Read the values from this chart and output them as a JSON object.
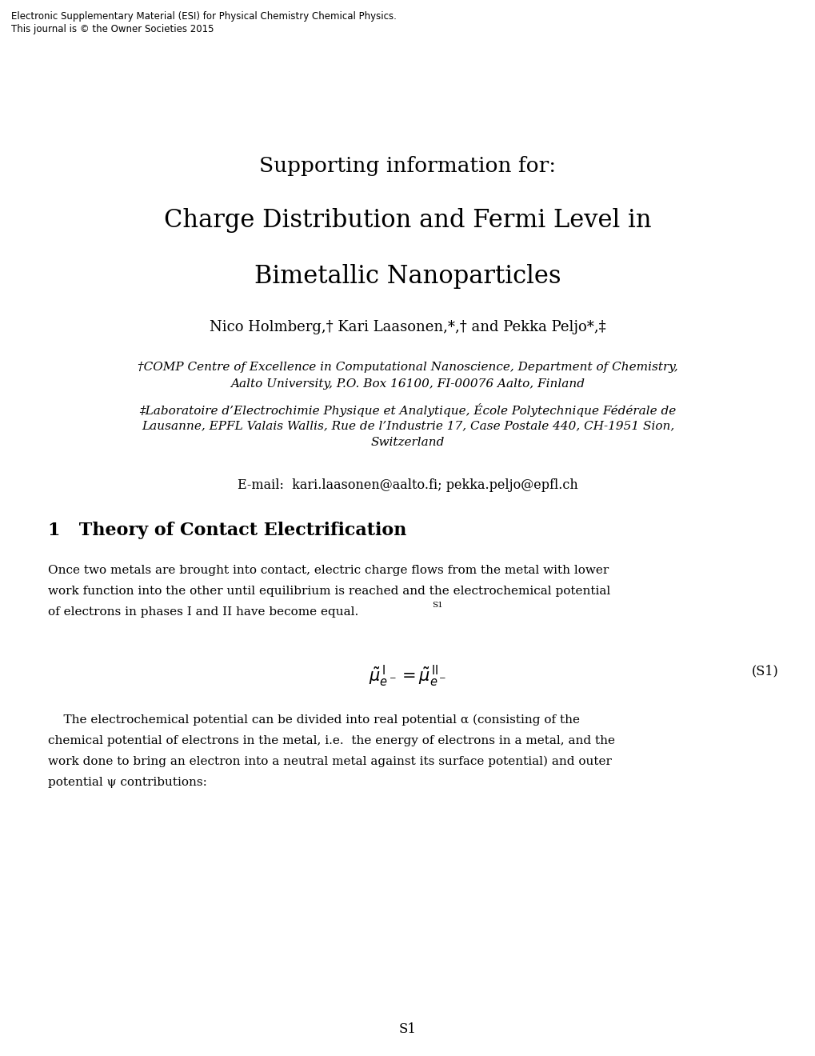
{
  "background_color": "#ffffff",
  "header_line1": "Electronic Supplementary Material (ESI) for Physical Chemistry Chemical Physics.",
  "header_line2": "This journal is © the Owner Societies 2015",
  "title_line1": "Supporting information for:",
  "title_line2": "Charge Distribution and Fermi Level in",
  "title_line3": "Bimetallic Nanoparticles",
  "authors": "Nico Holmberg,† Kari Laasonen,*,† and Pekka Peljo*,‡",
  "affil1_line1": "†COMP Centre of Excellence in Computational Nanoscience, Department of Chemistry,",
  "affil1_line2": "Aalto University, P.O. Box 16100, FI-00076 Aalto, Finland",
  "affil2_line1": "‡Laboratoire d’Electrochimie Physique et Analytique, École Polytechnique Fédérale de",
  "affil2_line2": "Lausanne, EPFL Valais Wallis, Rue de l’Industrie 17, Case Postale 440, CH-1951 Sion,",
  "affil2_line3": "Switzerland",
  "email": "E-mail:  kari.laasonen@aalto.fi; pekka.peljo@epfl.ch",
  "section_num": "1",
  "section_title": "Theory of Contact Electrification",
  "body_para1_l1": "Once two metals are brought into contact, electric charge flows from the metal with lower",
  "body_para1_l2": "work function into the other until equilibrium is reached and the electrochemical potential",
  "body_para1_l3": "of electrons in phases I and II have become equal.",
  "body_para1_ref": "S1",
  "eq_label": "(S1)",
  "body_para2_l1": "    The electrochemical potential can be divided into real potential α (consisting of the",
  "body_para2_l2": "chemical potential of electrons in the metal, i.e.  the energy of electrons in a metal, and the",
  "body_para2_l3": "work done to bring an electron into a neutral metal against its surface potential) and outer",
  "body_para2_l4": "potential ψ contributions:",
  "page_num": "S1"
}
